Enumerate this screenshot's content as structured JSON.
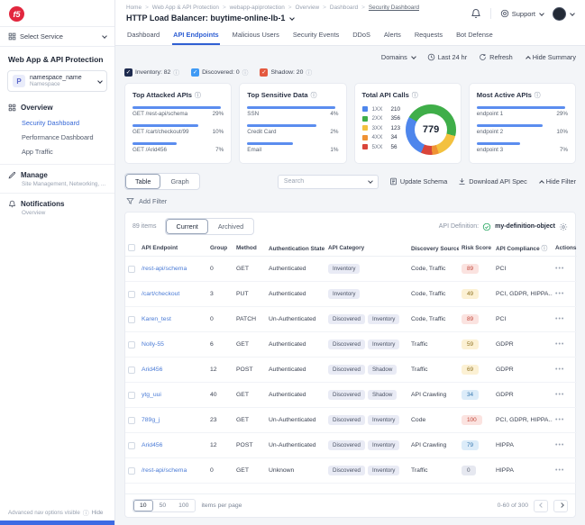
{
  "sidebar": {
    "select_service": {
      "label": "Select Service"
    },
    "section_title": "Web App & API Protection",
    "namespace": {
      "initial": "P",
      "name": "namespace_name",
      "type": "Namespace"
    },
    "nav": [
      {
        "label": "Overview",
        "children": [
          "Security Dashboard",
          "Performance Dashboard",
          "App Traffic"
        ],
        "active_child": 0
      },
      {
        "label": "Manage",
        "subtitle": "Site Management, Networking, ..."
      },
      {
        "label": "Notifications",
        "subtitle": "Overview"
      }
    ],
    "footer": {
      "text": "Advanced nav options visible",
      "action": "Hide"
    }
  },
  "header": {
    "breadcrumb": [
      "Home",
      "Web App & API Protection",
      "webapp-apiprotection",
      "Overview",
      "Dashboard",
      "Security Dashboard"
    ],
    "title": "HTTP Load Balancer: buytime-online-lb-1",
    "support_label": "Support"
  },
  "tabs": {
    "items": [
      "Dashboard",
      "API Endpoints",
      "Malicious Users",
      "Security Events",
      "DDoS",
      "Alerts",
      "Requests",
      "Bot Defense"
    ],
    "active_index": 1
  },
  "controls": {
    "domains": "Domains",
    "time_range": "Last 24 hr",
    "refresh": "Refresh",
    "toggle_summary": "Hide Summary"
  },
  "legend_filters": [
    {
      "label": "Inventory: 82",
      "color": "#1e2b4f"
    },
    {
      "label": "Discovered: 0",
      "color": "#3f9af5"
    },
    {
      "label": "Shadow: 20",
      "color": "#e4593f"
    }
  ],
  "cards": {
    "top_attacked": {
      "title": "Top Attacked APIs",
      "stats": [
        {
          "label": "GET /rest-api/schema",
          "value": "29%",
          "bar_pct": 97
        },
        {
          "label": "GET /cart/checkout/99",
          "value": "10%",
          "bar_pct": 72
        },
        {
          "label": "GET /Arid456",
          "value": "7%",
          "bar_pct": 48
        }
      ]
    },
    "top_sensitive": {
      "title": "Top Sensitive Data",
      "stats": [
        {
          "label": "SSN",
          "value": "4%",
          "bar_pct": 97
        },
        {
          "label": "Credit Card",
          "value": "2%",
          "bar_pct": 76
        },
        {
          "label": "Email",
          "value": "1%",
          "bar_pct": 50
        }
      ]
    },
    "total_calls": {
      "title": "Total API Calls",
      "total": "779",
      "segments": [
        {
          "label": "1XX",
          "value": 210,
          "color": "#4e86ec"
        },
        {
          "label": "2XX",
          "value": 356,
          "color": "#3fae49"
        },
        {
          "label": "3XX",
          "value": 123,
          "color": "#f3c13f"
        },
        {
          "label": "4XX",
          "value": 34,
          "color": "#ef9234"
        },
        {
          "label": "5XX",
          "value": 56,
          "color": "#d9453a"
        }
      ]
    },
    "most_active": {
      "title": "Most Active APIs",
      "stats": [
        {
          "label": "endpoint 1",
          "value": "29%",
          "bar_pct": 97
        },
        {
          "label": "endpoint 2",
          "value": "10%",
          "bar_pct": 72
        },
        {
          "label": "endpoint 3",
          "value": "7%",
          "bar_pct": 48
        }
      ]
    }
  },
  "toolbar": {
    "views": [
      "Table",
      "Graph"
    ],
    "active_view": 0,
    "search_placeholder": "Search",
    "update_schema": "Update Schema",
    "download_spec": "Download API Spec",
    "hide_filter": "Hide Filter",
    "add_filter": "Add Filter"
  },
  "list_header": {
    "count": "89 items",
    "state_tabs": [
      "Current",
      "Archived"
    ],
    "active_state": 0,
    "api_definition_label": "API Definition:",
    "api_definition_value": "my-definition-object"
  },
  "table": {
    "columns": [
      "API Endpoint",
      "Group",
      "Method",
      "Authentication State",
      "API Category",
      "Discovery Source",
      "Risk Score",
      "API Compliance",
      "Actions"
    ],
    "info_columns": [
      3,
      5,
      7
    ],
    "actions_glyph": "•••",
    "rows": [
      {
        "endpoint": "/rest-api/schema",
        "group": "0",
        "method": "GET",
        "auth": "Authenticated",
        "categories": [
          "Inventory"
        ],
        "source": "Code, Traffic",
        "risk": "89",
        "risk_level": "red",
        "compliance": "PCI"
      },
      {
        "endpoint": "/cart/checkout",
        "group": "3",
        "method": "PUT",
        "auth": "Authenticated",
        "categories": [
          "Inventory"
        ],
        "source": "Code, Traffic",
        "risk": "49",
        "risk_level": "yellow",
        "compliance": "PCI, GDPR, HIPPA..."
      },
      {
        "endpoint": "Karen_test",
        "group": "0",
        "method": "PATCH",
        "auth": "Un-Authenticated",
        "categories": [
          "Discovered",
          "Inventory"
        ],
        "source": "Code, Traffic",
        "risk": "89",
        "risk_level": "red",
        "compliance": "PCI"
      },
      {
        "endpoint": "Nolly-55",
        "group": "6",
        "method": "GET",
        "auth": "Authenticated",
        "categories": [
          "Discovered",
          "Inventory"
        ],
        "source": "Traffic",
        "risk": "59",
        "risk_level": "yellow",
        "compliance": "GDPR"
      },
      {
        "endpoint": "Arid456",
        "group": "12",
        "method": "POST",
        "auth": "Authenticated",
        "categories": [
          "Discovered",
          "Shadow"
        ],
        "source": "Traffic",
        "risk": "69",
        "risk_level": "yellow",
        "compliance": "GDPR"
      },
      {
        "endpoint": "ytg_uui",
        "group": "40",
        "method": "GET",
        "auth": "Authenticated",
        "categories": [
          "Discovered",
          "Shadow"
        ],
        "source": "API Crawling",
        "risk": "34",
        "risk_level": "blue",
        "compliance": "GDPR"
      },
      {
        "endpoint": "789g_j",
        "group": "23",
        "method": "GET",
        "auth": "Un-Authenticated",
        "categories": [
          "Discovered",
          "Inventory"
        ],
        "source": "Code",
        "risk": "100",
        "risk_level": "red",
        "compliance": "PCI, GDPR, HIPPA..."
      },
      {
        "endpoint": "Arid456",
        "group": "12",
        "method": "POST",
        "auth": "Un-Authenticated",
        "categories": [
          "Discovered",
          "Inventory"
        ],
        "source": "API Crawling",
        "risk": "79",
        "risk_level": "blue",
        "compliance": "HIPPA"
      },
      {
        "endpoint": "/rest-api/schema",
        "group": "0",
        "method": "GET",
        "auth": "Unknown",
        "categories": [
          "Discovered",
          "Inventory"
        ],
        "source": "Traffic",
        "risk": "0",
        "risk_level": "gray",
        "compliance": "HIPPA"
      }
    ]
  },
  "pagination": {
    "page_sizes": [
      "10",
      "50",
      "100"
    ],
    "active_size": 0,
    "suffix": "items per page",
    "range": "0-60 of 300"
  }
}
